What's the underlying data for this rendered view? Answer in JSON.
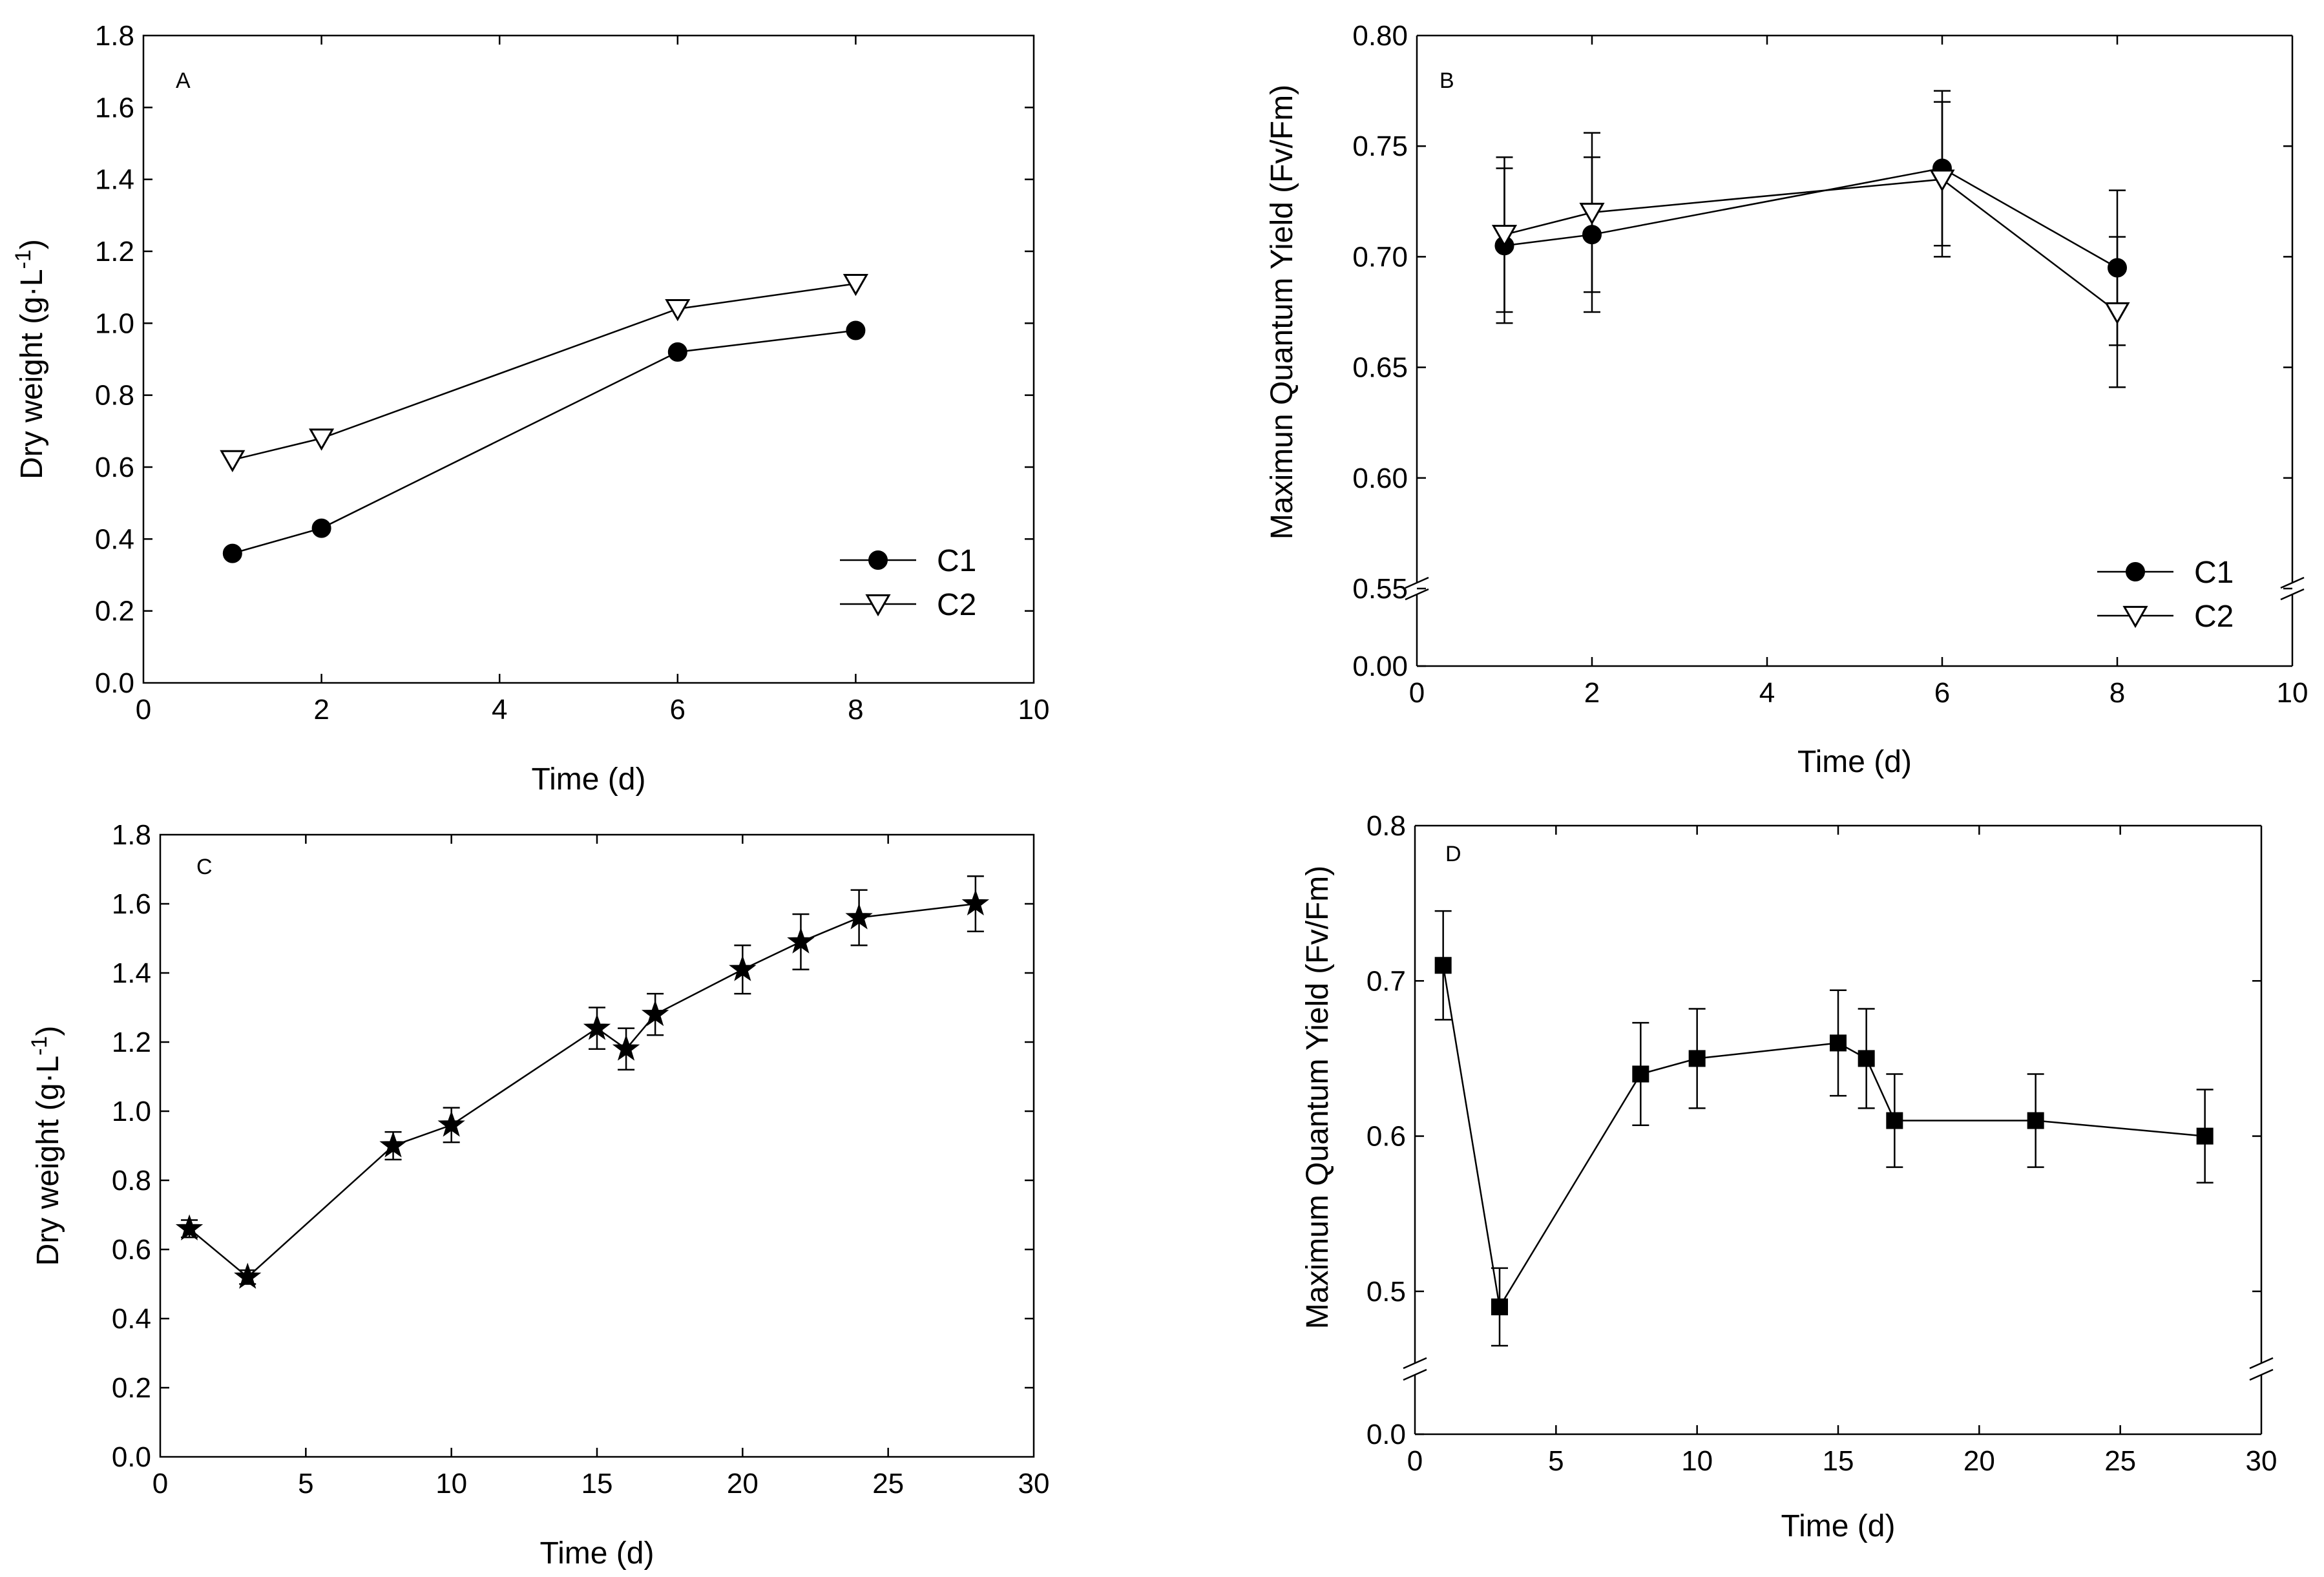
{
  "chart_data": [
    {
      "panel": "A",
      "type": "line",
      "xlabel": "Time (d)",
      "ylabel": "Dry weight (g·L-1)",
      "ylabel_parts": [
        "Dry weight (g·L",
        "-1",
        ")"
      ],
      "xlim": [
        0,
        10
      ],
      "ylim": [
        0,
        1.8
      ],
      "xticks": [
        "0",
        "2",
        "4",
        "6",
        "8",
        "10"
      ],
      "yticks": [
        "0.0",
        "0.2",
        "0.4",
        "0.6",
        "0.8",
        "1.0",
        "1.2",
        "1.4",
        "1.6",
        "1.8"
      ],
      "legend_position": "bottom-right",
      "series": [
        {
          "name": "C1",
          "marker": "filled-circle",
          "x": [
            1,
            2,
            6,
            8
          ],
          "y": [
            0.36,
            0.43,
            0.92,
            0.98
          ],
          "err": [
            0,
            0,
            0,
            0
          ]
        },
        {
          "name": "C2",
          "marker": "open-triangle-down",
          "x": [
            1,
            2,
            6,
            8
          ],
          "y": [
            0.62,
            0.68,
            1.04,
            1.11
          ],
          "err": [
            0,
            0,
            0,
            0
          ]
        }
      ]
    },
    {
      "panel": "B",
      "type": "line",
      "xlabel": "Time (d)",
      "ylabel": "Maximun Quantum Yield (Fv/Fm)",
      "xlim": [
        0,
        10
      ],
      "ylim": [
        0.55,
        0.8
      ],
      "axis_break": {
        "below": 0.55,
        "baseline_label": "0.00"
      },
      "xticks": [
        "0",
        "2",
        "4",
        "6",
        "8",
        "10"
      ],
      "yticks": [
        "0.55",
        "0.60",
        "0.65",
        "0.70",
        "0.75",
        "0.80"
      ],
      "legend_position": "bottom-right",
      "series": [
        {
          "name": "C1",
          "marker": "filled-circle",
          "x": [
            1,
            2,
            6,
            8
          ],
          "y": [
            0.705,
            0.71,
            0.74,
            0.695
          ],
          "err": [
            0.035,
            0.035,
            0.035,
            0.035
          ]
        },
        {
          "name": "C2",
          "marker": "open-triangle-down",
          "x": [
            1,
            2,
            6,
            8
          ],
          "y": [
            0.71,
            0.72,
            0.735,
            0.675
          ],
          "err": [
            0.035,
            0.036,
            0.035,
            0.034
          ]
        }
      ]
    },
    {
      "panel": "C",
      "type": "line",
      "xlabel": "Time (d)",
      "ylabel": "Dry weight (g·L-1)",
      "ylabel_parts": [
        "Dry weight (g·L",
        "-1",
        ")"
      ],
      "xlim": [
        0,
        30
      ],
      "ylim": [
        0,
        1.8
      ],
      "xticks": [
        "0",
        "5",
        "10",
        "15",
        "20",
        "25",
        "30"
      ],
      "yticks": [
        "0.0",
        "0.2",
        "0.4",
        "0.6",
        "0.8",
        "1.0",
        "1.2",
        "1.4",
        "1.6",
        "1.8"
      ],
      "series": [
        {
          "name": "",
          "marker": "filled-star",
          "x": [
            1,
            3,
            8,
            10,
            15,
            16,
            17,
            20,
            22,
            24,
            28
          ],
          "y": [
            0.66,
            0.52,
            0.9,
            0.96,
            1.24,
            1.18,
            1.28,
            1.41,
            1.49,
            1.56,
            1.6
          ],
          "err": [
            0.025,
            0.02,
            0.04,
            0.05,
            0.06,
            0.06,
            0.06,
            0.07,
            0.08,
            0.08,
            0.08
          ]
        }
      ]
    },
    {
      "panel": "D",
      "type": "line",
      "xlabel": "Time (d)",
      "ylabel": "Maximum Quantum Yield (Fv/Fm)",
      "xlim": [
        0,
        30
      ],
      "ylim": [
        0.45,
        0.8
      ],
      "axis_break": {
        "below": 0.45,
        "baseline_label": "0.0"
      },
      "xticks": [
        "0",
        "5",
        "10",
        "15",
        "20",
        "25",
        "30"
      ],
      "yticks": [
        "0.5",
        "0.6",
        "0.7",
        "0.8"
      ],
      "series": [
        {
          "name": "",
          "marker": "filled-square",
          "x": [
            1,
            3,
            8,
            10,
            15,
            16,
            17,
            22,
            28
          ],
          "y": [
            0.71,
            0.49,
            0.64,
            0.65,
            0.66,
            0.65,
            0.61,
            0.61,
            0.6
          ],
          "err": [
            0.035,
            0.025,
            0.033,
            0.032,
            0.034,
            0.032,
            0.03,
            0.03,
            0.03
          ]
        }
      ]
    }
  ]
}
